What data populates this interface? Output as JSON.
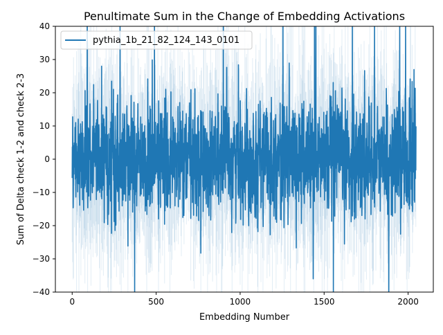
{
  "chart_data": {
    "type": "line",
    "title": "Penultimate Sum in the Change of Embedding Activations",
    "xlabel": "Embedding Number",
    "ylabel": "Sum of Delta check 1-2 and check 2-3",
    "xlim": [
      -100,
      2150
    ],
    "ylim": [
      -40,
      40
    ],
    "xticks": [
      0,
      500,
      1000,
      1500,
      2000
    ],
    "yticks": [
      -40,
      -30,
      -20,
      -10,
      0,
      10,
      20,
      30,
      40
    ],
    "grid": false,
    "legend": "upper-left",
    "band": true,
    "n_points": 2048,
    "seed": 82124,
    "noise_sd": 8.5,
    "spikes": [
      {
        "x": 90,
        "y": 45
      },
      {
        "x": 175,
        "y": 28
      },
      {
        "x": 285,
        "y": 40
      },
      {
        "x": 372,
        "y": -45
      },
      {
        "x": 490,
        "y": 45
      },
      {
        "x": 900,
        "y": 45
      },
      {
        "x": 1255,
        "y": 45
      },
      {
        "x": 1435,
        "y": -36
      },
      {
        "x": 1443,
        "y": 45
      },
      {
        "x": 1451,
        "y": 45
      },
      {
        "x": 1555,
        "y": -45
      },
      {
        "x": 1668,
        "y": 45
      },
      {
        "x": 1800,
        "y": 45
      },
      {
        "x": 1885,
        "y": -45
      },
      {
        "x": 1950,
        "y": 45
      },
      {
        "x": 1985,
        "y": 45
      },
      {
        "x": 2035,
        "y": 27
      }
    ],
    "series": [
      {
        "name": "pythia_1b_21_82_124_143_0101",
        "color": "#1f77b4"
      }
    ]
  }
}
